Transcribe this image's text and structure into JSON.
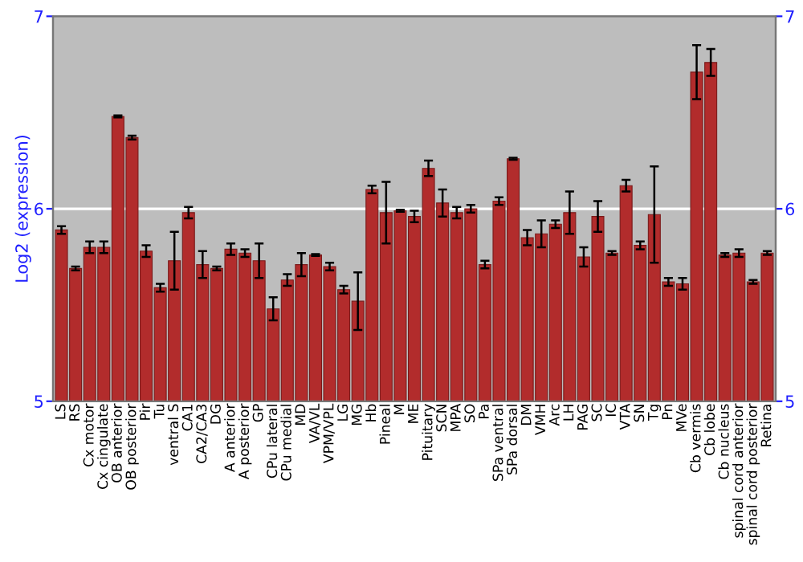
{
  "chart_data": {
    "type": "bar",
    "ylabel": "Log2 (expression)",
    "categories": [
      "LS",
      "RS",
      "Cx motor",
      "Cx cingulate",
      "OB anterior",
      "OB posterior",
      "Pir",
      "Tu",
      "ventral S",
      "CA1",
      "CA2/CA3",
      "DG",
      "A anterior",
      "A posterior",
      "GP",
      "CPu lateral",
      "CPu medial",
      "MD",
      "VA/VL",
      "VPM/VPL",
      "LG",
      "MG",
      "Hb",
      "Pineal",
      "M",
      "ME",
      "Pituitary",
      "SCN",
      "MPA",
      "SO",
      "Pa",
      "SPa ventral",
      "SPa dorsal",
      "DM",
      "VMH",
      "Arc",
      "LH",
      "PAG",
      "SC",
      "IC",
      "VTA",
      "SN",
      "Tg",
      "Pn",
      "MVe",
      "Cb vermis",
      "Cb lobe",
      "Cb nucleus",
      "spinal cord anterior",
      "spinal cord posterior",
      "Retina"
    ],
    "values": [
      5.89,
      5.69,
      5.8,
      5.8,
      6.48,
      6.37,
      5.78,
      5.59,
      5.73,
      5.98,
      5.71,
      5.69,
      5.79,
      5.77,
      5.73,
      5.48,
      5.63,
      5.71,
      5.76,
      5.7,
      5.58,
      5.52,
      6.1,
      5.98,
      5.99,
      5.96,
      6.21,
      6.03,
      5.98,
      6.0,
      5.71,
      6.04,
      6.26,
      5.85,
      5.87,
      5.92,
      5.98,
      5.75,
      5.96,
      5.77,
      6.12,
      5.81,
      5.97,
      5.62,
      5.61,
      6.71,
      6.76,
      5.76,
      5.77,
      5.62,
      5.77
    ],
    "errors": [
      0.02,
      0.01,
      0.03,
      0.03,
      0.005,
      0.01,
      0.03,
      0.02,
      0.15,
      0.03,
      0.07,
      0.01,
      0.03,
      0.02,
      0.09,
      0.06,
      0.03,
      0.06,
      0.005,
      0.02,
      0.02,
      0.15,
      0.02,
      0.16,
      0.005,
      0.03,
      0.04,
      0.07,
      0.03,
      0.02,
      0.02,
      0.02,
      0.005,
      0.04,
      0.07,
      0.02,
      0.11,
      0.05,
      0.08,
      0.01,
      0.03,
      0.02,
      0.25,
      0.02,
      0.03,
      0.14,
      0.07,
      0.01,
      0.02,
      0.01,
      0.01
    ],
    "color": "#b22c2c",
    "ylim": [
      5,
      7
    ],
    "yticks": [
      5,
      6,
      7
    ],
    "y2lim": [
      5,
      7
    ],
    "y2ticks": [
      5,
      6,
      7
    ],
    "grid": "y"
  }
}
